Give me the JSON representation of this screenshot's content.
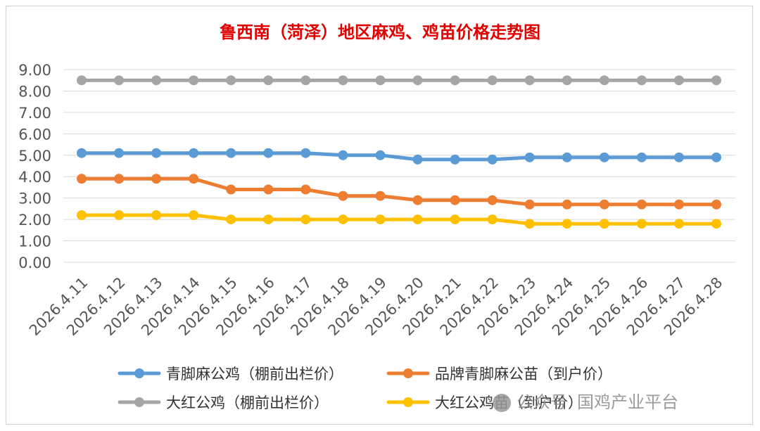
{
  "chart_data": {
    "type": "line",
    "title": "鲁西南（菏泽）地区麻鸡、鸡苗价格走势图",
    "categories": [
      "2026.4.11",
      "2026.4.12",
      "2026.4.13",
      "2026.4.14",
      "2026.4.15",
      "2026.4.16",
      "2026.4.17",
      "2026.4.18",
      "2026.4.19",
      "2026.4.20",
      "2026.4.21",
      "2026.4.22",
      "2026.4.23",
      "2026.4.24",
      "2026.4.25",
      "2026.4.26",
      "2026.4.27",
      "2026.4.28"
    ],
    "ylim": [
      0,
      9
    ],
    "yticks": [
      "0.00",
      "1.00",
      "2.00",
      "3.00",
      "4.00",
      "5.00",
      "6.00",
      "7.00",
      "8.00",
      "9.00"
    ],
    "grid": true,
    "legend_position": "bottom",
    "series": [
      {
        "name": "青脚麻公鸡（棚前出栏价）",
        "color": "#5b9bd5",
        "values": [
          5.1,
          5.1,
          5.1,
          5.1,
          5.1,
          5.1,
          5.1,
          5.0,
          5.0,
          4.8,
          4.8,
          4.8,
          4.9,
          4.9,
          4.9,
          4.9,
          4.9,
          4.9
        ]
      },
      {
        "name": "品牌青脚麻公苗（到户价）",
        "color": "#ed7d31",
        "values": [
          3.9,
          3.9,
          3.9,
          3.9,
          3.4,
          3.4,
          3.4,
          3.1,
          3.1,
          2.9,
          2.9,
          2.9,
          2.7,
          2.7,
          2.7,
          2.7,
          2.7,
          2.7
        ]
      },
      {
        "name": "大红公鸡（棚前出栏价）",
        "color": "#a5a5a5",
        "values": [
          8.5,
          8.5,
          8.5,
          8.5,
          8.5,
          8.5,
          8.5,
          8.5,
          8.5,
          8.5,
          8.5,
          8.5,
          8.5,
          8.5,
          8.5,
          8.5,
          8.5,
          8.5
        ]
      },
      {
        "name": "大红公鸡苗（到户价）",
        "color": "#ffc000",
        "values": [
          2.2,
          2.2,
          2.2,
          2.2,
          2.0,
          2.0,
          2.0,
          2.0,
          2.0,
          2.0,
          2.0,
          2.0,
          1.8,
          1.8,
          1.8,
          1.8,
          1.8,
          1.8
        ]
      }
    ]
  },
  "watermark": {
    "left": "公众号",
    "right": "国鸡产业平台"
  }
}
